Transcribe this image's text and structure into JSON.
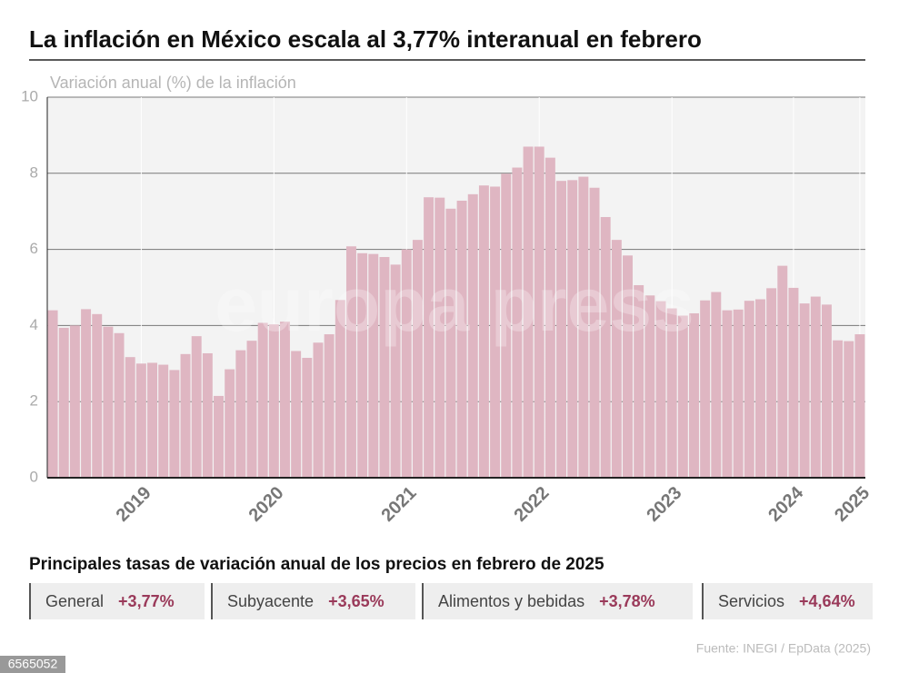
{
  "chart_data": {
    "type": "bar",
    "title": "La inflación en México escala al 3,77% interanual en febrero",
    "subtitle": "Variación anual (%) de la inflación",
    "categories": [
      null,
      null,
      null,
      null,
      null,
      null,
      null,
      null,
      "2019",
      null,
      null,
      null,
      null,
      null,
      null,
      null,
      null,
      null,
      null,
      null,
      "2020",
      null,
      null,
      null,
      null,
      null,
      null,
      null,
      null,
      null,
      null,
      null,
      "2021",
      null,
      null,
      null,
      null,
      null,
      null,
      null,
      null,
      null,
      null,
      null,
      "2022",
      null,
      null,
      null,
      null,
      null,
      null,
      null,
      null,
      null,
      null,
      null,
      "2023",
      null,
      null,
      null,
      null,
      null,
      null,
      null,
      null,
      null,
      null,
      "2024",
      null,
      null,
      null,
      null,
      null,
      "2025"
    ],
    "values": [
      4.4,
      3.94,
      4.0,
      4.43,
      4.3,
      3.97,
      3.8,
      3.17,
      3.0,
      3.02,
      2.97,
      2.83,
      3.25,
      3.72,
      3.27,
      2.15,
      2.85,
      3.35,
      3.6,
      4.07,
      4.03,
      4.1,
      3.33,
      3.15,
      3.55,
      3.77,
      4.67,
      6.08,
      5.9,
      5.88,
      5.8,
      5.6,
      6.0,
      6.25,
      7.37,
      7.36,
      7.07,
      7.28,
      7.45,
      7.68,
      7.65,
      7.99,
      8.15,
      8.7,
      8.7,
      8.41,
      7.8,
      7.82,
      7.91,
      7.62,
      6.85,
      6.25,
      5.84,
      5.06,
      4.79,
      4.64,
      4.45,
      4.26,
      4.32,
      4.66,
      4.88,
      4.4,
      4.42,
      4.65,
      4.69,
      4.98,
      5.57,
      4.99,
      4.58,
      4.76,
      4.55,
      3.61,
      3.59,
      3.77
    ],
    "color": "#a8546b",
    "ylim": [
      0,
      10
    ],
    "yticks": [
      0,
      2,
      4,
      6,
      8,
      10
    ],
    "grid": true
  },
  "watermark": "europa press",
  "stats_title": "Principales tasas de variación anual de los precios en febrero de 2025",
  "stats": [
    {
      "label": "General",
      "value": "+3,77%"
    },
    {
      "label": "Subyacente",
      "value": "+3,65%"
    },
    {
      "label": "Alimentos y bebidas",
      "value": "+3,78%"
    },
    {
      "label": "Servicios",
      "value": "+4,64%"
    }
  ],
  "source": "Fuente: INEGI / EpData (2025)",
  "image_id": "6565052"
}
